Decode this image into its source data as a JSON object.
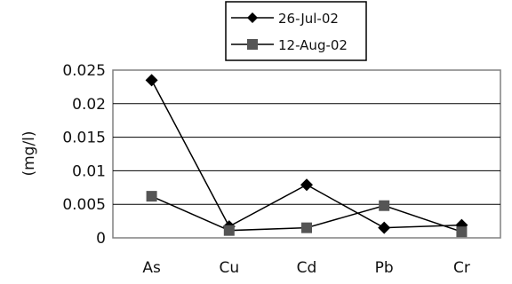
{
  "chart_data": {
    "type": "line",
    "categories": [
      "As",
      "Cu",
      "Cd",
      "Pb",
      "Cr"
    ],
    "series": [
      {
        "name": "26-Jul-02",
        "marker": "diamond",
        "values": [
          0.0235,
          0.0017,
          0.0079,
          0.0015,
          0.0019
        ]
      },
      {
        "name": "12-Aug-02",
        "marker": "square",
        "values": [
          0.0062,
          0.0011,
          0.0015,
          0.0048,
          0.0009
        ]
      }
    ],
    "title": "",
    "xlabel": "",
    "ylabel": "(mg/l)",
    "ylim": [
      0,
      0.025
    ],
    "yticks": [
      "0",
      "0.005",
      "0.01",
      "0.015",
      "0.02",
      "0.025"
    ],
    "grid": true,
    "legend_position": "top",
    "colors": {
      "line": "#000000",
      "marker": "#000000",
      "grid": "#000000",
      "plot_border": "#808080"
    }
  }
}
